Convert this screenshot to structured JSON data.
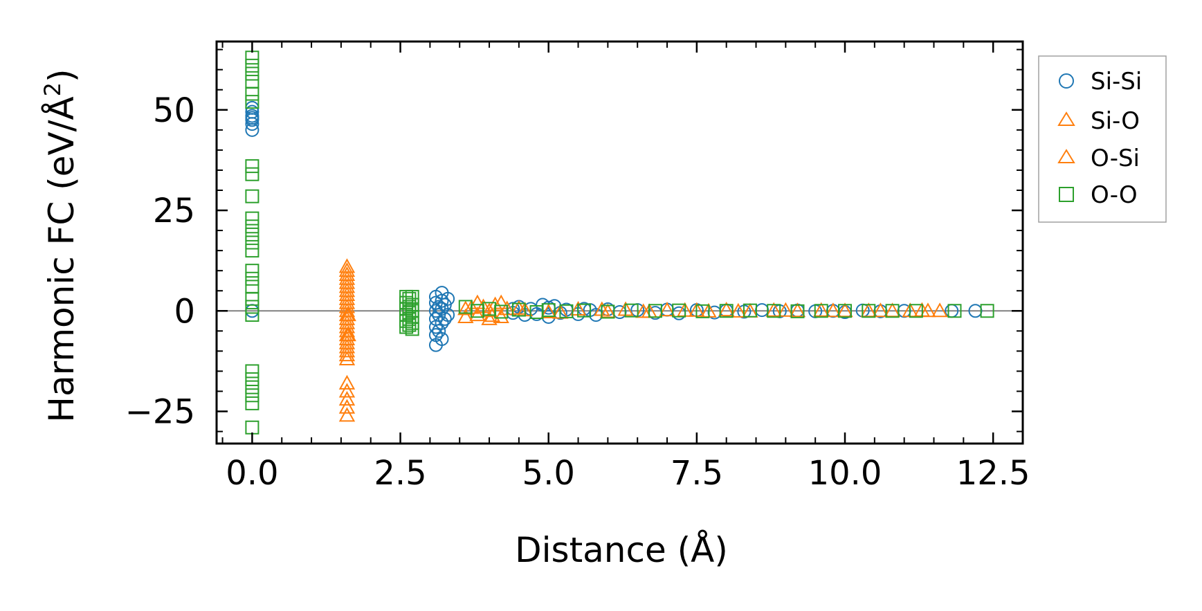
{
  "chart_data": {
    "type": "scatter",
    "title": "",
    "xlabel": "Distance (Å)",
    "ylabel_main": "Harmonic FC (eV/Å",
    "ylabel_sup": "2",
    "ylabel_close": ")",
    "xlim": [
      -0.6,
      13.0
    ],
    "ylim": [
      -33,
      67
    ],
    "xticks": [
      0.0,
      2.5,
      5.0,
      7.5,
      10.0,
      12.5
    ],
    "xtick_labels": [
      "0.0",
      "2.5",
      "5.0",
      "7.5",
      "10.0",
      "12.5"
    ],
    "yticks": [
      -25,
      0,
      25,
      50
    ],
    "ytick_labels": [
      "−25",
      "0",
      "25",
      "50"
    ],
    "zero_line": 0,
    "grid": false,
    "legend_position": "outside-right-top",
    "series": [
      {
        "name": "Si-Si",
        "marker": "circle",
        "color": "#1f77b4",
        "points": [
          [
            0.0,
            45.0
          ],
          [
            0.0,
            46.5
          ],
          [
            0.0,
            47.5
          ],
          [
            0.0,
            48.0
          ],
          [
            0.0,
            48.5
          ],
          [
            0.0,
            49.5
          ],
          [
            0.0,
            50.5
          ],
          [
            0.0,
            0.0
          ],
          [
            3.1,
            -8.5
          ],
          [
            3.1,
            -6.0
          ],
          [
            3.1,
            -4.0
          ],
          [
            3.1,
            -2.0
          ],
          [
            3.1,
            0.0
          ],
          [
            3.1,
            2.0
          ],
          [
            3.1,
            3.5
          ],
          [
            3.15,
            -5.0
          ],
          [
            3.15,
            -1.0
          ],
          [
            3.15,
            1.0
          ],
          [
            3.2,
            -7.0
          ],
          [
            3.2,
            -3.0
          ],
          [
            3.2,
            0.5
          ],
          [
            3.2,
            2.5
          ],
          [
            3.2,
            4.5
          ],
          [
            3.25,
            -2.0
          ],
          [
            3.25,
            1.5
          ],
          [
            3.3,
            -1.0
          ],
          [
            3.3,
            3.0
          ],
          [
            4.4,
            0.5
          ],
          [
            4.4,
            -0.5
          ],
          [
            4.5,
            1.0
          ],
          [
            4.6,
            -1.0
          ],
          [
            4.7,
            0.5
          ],
          [
            4.8,
            -0.8
          ],
          [
            4.9,
            1.5
          ],
          [
            5.0,
            -1.5
          ],
          [
            5.0,
            0.8
          ],
          [
            5.1,
            1.2
          ],
          [
            5.2,
            -0.5
          ],
          [
            5.3,
            0.3
          ],
          [
            5.5,
            -0.8
          ],
          [
            5.6,
            0.5
          ],
          [
            5.7,
            0.2
          ],
          [
            5.8,
            -1.0
          ],
          [
            6.0,
            0.4
          ],
          [
            6.2,
            -0.3
          ],
          [
            6.5,
            0.2
          ],
          [
            6.8,
            -0.5
          ],
          [
            7.0,
            0.3
          ],
          [
            7.2,
            -0.6
          ],
          [
            7.5,
            0.2
          ],
          [
            7.8,
            -0.4
          ],
          [
            8.0,
            0.1
          ],
          [
            8.3,
            -0.2
          ],
          [
            8.6,
            0.2
          ],
          [
            8.9,
            -0.1
          ],
          [
            9.2,
            0.1
          ],
          [
            9.5,
            -0.1
          ],
          [
            9.8,
            0.0
          ],
          [
            10.0,
            -0.3
          ],
          [
            10.3,
            0.1
          ],
          [
            10.6,
            -0.1
          ],
          [
            11.0,
            0.0
          ],
          [
            11.8,
            0.0
          ],
          [
            12.2,
            0.0
          ]
        ]
      },
      {
        "name": "Si-O",
        "marker": "triangle",
        "color": "#ff7f0e",
        "points": [
          [
            1.6,
            11.0
          ],
          [
            1.6,
            10.0
          ],
          [
            1.6,
            9.0
          ],
          [
            1.6,
            8.0
          ],
          [
            1.6,
            7.0
          ],
          [
            1.6,
            6.0
          ],
          [
            1.6,
            5.0
          ],
          [
            1.6,
            4.0
          ],
          [
            1.6,
            3.0
          ],
          [
            1.6,
            2.0
          ],
          [
            1.6,
            1.0
          ],
          [
            1.6,
            0.0
          ],
          [
            1.6,
            -1.0
          ],
          [
            1.6,
            -2.0
          ],
          [
            1.6,
            -3.0
          ],
          [
            1.6,
            -4.0
          ],
          [
            1.6,
            -5.0
          ],
          [
            1.6,
            -6.0
          ],
          [
            1.6,
            -7.0
          ],
          [
            1.6,
            -8.0
          ],
          [
            1.6,
            -9.0
          ],
          [
            1.6,
            -10.0
          ],
          [
            1.6,
            -11.0
          ],
          [
            1.6,
            -12.0
          ],
          [
            1.6,
            -18.0
          ],
          [
            1.6,
            -20.0
          ],
          [
            1.6,
            -22.0
          ],
          [
            1.6,
            -24.0
          ],
          [
            1.6,
            -26.0
          ],
          [
            3.6,
            -1.5
          ],
          [
            3.6,
            0.5
          ],
          [
            3.8,
            -1.0
          ],
          [
            3.8,
            2.0
          ],
          [
            3.9,
            1.0
          ],
          [
            4.0,
            -2.0
          ],
          [
            4.0,
            0.0
          ],
          [
            4.1,
            1.5
          ],
          [
            4.2,
            -1.5
          ],
          [
            4.2,
            2.0
          ],
          [
            4.3,
            0.5
          ],
          [
            4.6,
            0.2
          ],
          [
            5.0,
            -0.3
          ],
          [
            5.5,
            0.4
          ],
          [
            6.0,
            -0.2
          ],
          [
            6.3,
            0.3
          ],
          [
            6.6,
            -0.2
          ],
          [
            7.0,
            0.2
          ],
          [
            7.3,
            0.1
          ],
          [
            7.7,
            -0.1
          ],
          [
            8.0,
            0.2
          ],
          [
            8.4,
            -0.1
          ],
          [
            8.8,
            0.1
          ],
          [
            9.2,
            0.0
          ],
          [
            9.6,
            0.1
          ],
          [
            10.0,
            0.0
          ],
          [
            10.4,
            0.0
          ],
          [
            10.8,
            0.0
          ],
          [
            11.1,
            0.0
          ],
          [
            11.3,
            0.1
          ],
          [
            11.6,
            0.0
          ]
        ]
      },
      {
        "name": "O-Si",
        "marker": "triangle",
        "color": "#ff7f0e",
        "points": [
          [
            1.62,
            -1.0
          ],
          [
            1.62,
            -6.0
          ],
          [
            3.7,
            0.8
          ],
          [
            4.05,
            -1.2
          ],
          [
            4.5,
            0.6
          ],
          [
            5.2,
            -0.4
          ],
          [
            5.9,
            0.3
          ],
          [
            6.7,
            -0.2
          ],
          [
            7.5,
            0.1
          ],
          [
            8.2,
            -0.1
          ],
          [
            9.0,
            0.1
          ],
          [
            9.8,
            0.0
          ],
          [
            10.6,
            0.0
          ],
          [
            11.4,
            0.0
          ]
        ]
      },
      {
        "name": "O-O",
        "marker": "square",
        "color": "#2ca02c",
        "points": [
          [
            0.0,
            63.0
          ],
          [
            0.0,
            61.0
          ],
          [
            0.0,
            59.0
          ],
          [
            0.0,
            57.0
          ],
          [
            0.0,
            54.0
          ],
          [
            0.0,
            52.0
          ],
          [
            0.0,
            36.0
          ],
          [
            0.0,
            34.0
          ],
          [
            0.0,
            28.5
          ],
          [
            0.0,
            23.0
          ],
          [
            0.0,
            21.0
          ],
          [
            0.0,
            19.0
          ],
          [
            0.0,
            17.0
          ],
          [
            0.0,
            15.0
          ],
          [
            0.0,
            10.0
          ],
          [
            0.0,
            8.0
          ],
          [
            0.0,
            6.0
          ],
          [
            0.0,
            3.0
          ],
          [
            0.0,
            1.0
          ],
          [
            0.0,
            -1.0
          ],
          [
            0.0,
            -15.0
          ],
          [
            0.0,
            -17.0
          ],
          [
            0.0,
            -19.0
          ],
          [
            0.0,
            -21.0
          ],
          [
            0.0,
            -23.0
          ],
          [
            0.0,
            -29.0
          ],
          [
            2.6,
            3.5
          ],
          [
            2.6,
            2.0
          ],
          [
            2.6,
            0.5
          ],
          [
            2.6,
            -1.0
          ],
          [
            2.6,
            -2.5
          ],
          [
            2.6,
            -4.0
          ],
          [
            2.65,
            3.0
          ],
          [
            2.65,
            1.0
          ],
          [
            2.65,
            -0.5
          ],
          [
            2.65,
            -2.0
          ],
          [
            2.65,
            -3.5
          ],
          [
            2.7,
            3.5
          ],
          [
            2.7,
            1.5
          ],
          [
            2.7,
            0.0
          ],
          [
            2.7,
            -1.5
          ],
          [
            2.7,
            -3.0
          ],
          [
            2.7,
            -4.5
          ],
          [
            3.6,
            1.0
          ],
          [
            3.8,
            0.0
          ],
          [
            4.0,
            0.5
          ],
          [
            4.2,
            -0.2
          ],
          [
            4.5,
            0.3
          ],
          [
            4.8,
            -0.3
          ],
          [
            5.0,
            0.2
          ],
          [
            5.3,
            -0.1
          ],
          [
            5.6,
            0.1
          ],
          [
            6.0,
            -0.2
          ],
          [
            6.4,
            0.1
          ],
          [
            6.8,
            0.0
          ],
          [
            7.2,
            0.1
          ],
          [
            7.6,
            -0.1
          ],
          [
            8.0,
            0.0
          ],
          [
            8.4,
            0.1
          ],
          [
            8.8,
            0.0
          ],
          [
            9.2,
            -0.1
          ],
          [
            9.6,
            0.0
          ],
          [
            10.0,
            0.0
          ],
          [
            10.4,
            0.0
          ],
          [
            10.8,
            0.0
          ],
          [
            11.2,
            0.0
          ],
          [
            11.85,
            0.0
          ],
          [
            12.4,
            0.0
          ]
        ]
      }
    ],
    "legend": [
      {
        "label": "Si-Si",
        "marker": "circle",
        "color": "#1f77b4"
      },
      {
        "label": "Si-O",
        "marker": "triangle",
        "color": "#ff7f0e"
      },
      {
        "label": "O-Si",
        "marker": "triangle",
        "color": "#ff7f0e"
      },
      {
        "label": "O-O",
        "marker": "square",
        "color": "#2ca02c"
      }
    ]
  }
}
